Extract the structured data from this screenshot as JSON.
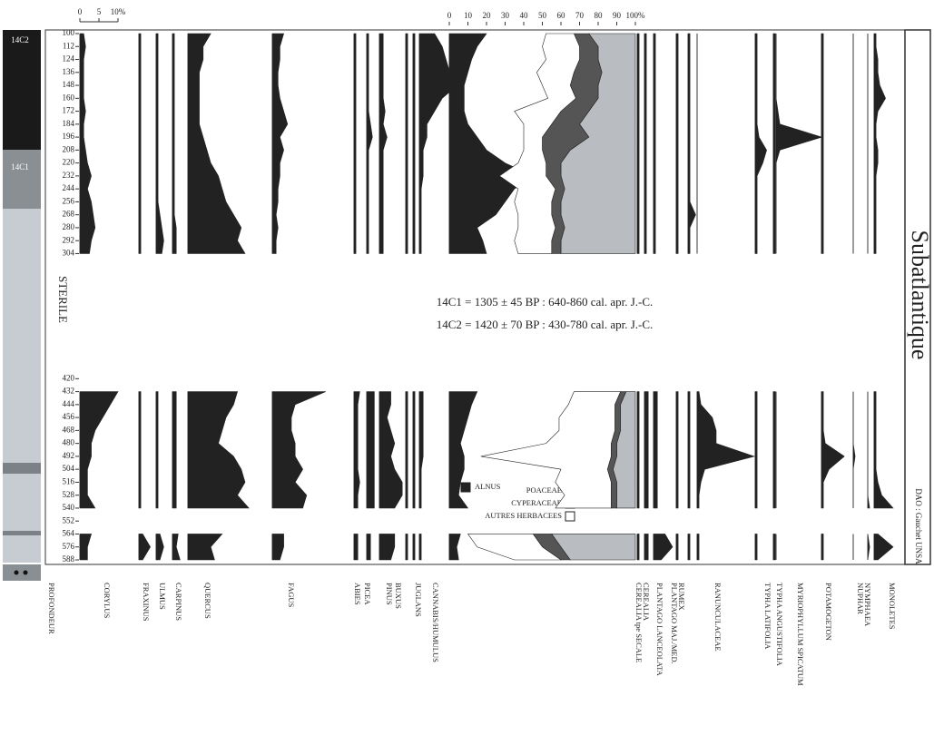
{
  "chart_data": {
    "type": "area",
    "y_label": "PROFONDEUR",
    "ylim": [
      100,
      588
    ],
    "yticks": [
      100,
      112,
      124,
      136,
      148,
      160,
      172,
      184,
      196,
      208,
      220,
      232,
      244,
      256,
      268,
      280,
      292,
      304,
      420,
      432,
      444,
      456,
      468,
      480,
      492,
      504,
      516,
      528,
      540,
      552,
      564,
      576,
      588
    ],
    "xticks": [
      0,
      5,
      {
        "value": 10,
        "label": "10%"
      }
    ],
    "x2ticks": [
      0,
      10,
      20,
      30,
      40,
      50,
      60,
      70,
      80,
      90,
      {
        "value": 100,
        "label": "100%"
      }
    ],
    "y": [
      100,
      112,
      124,
      136,
      148,
      160,
      172,
      184,
      196,
      208,
      220,
      232,
      244,
      256,
      268,
      280,
      292,
      304,
      432,
      444,
      456,
      468,
      480,
      492,
      504,
      516,
      528,
      540,
      564,
      576,
      588
    ],
    "annotations": [
      "14C1 = 1305 ± 45 BP : 640-860 cal. apr. J.-C.",
      "14C2 = 1420 ± 70 BP : 430-780 cal. apr. J.-C."
    ],
    "zone": "Subatlantique",
    "credit": "DAO : Gauchet UNSA",
    "lithology": [
      "14C2",
      "14C1",
      "STERILE"
    ],
    "series": [
      {
        "name": "CORYLUS",
        "color": "#222",
        "values": [
          1,
          1.5,
          1,
          1,
          1,
          1,
          1.5,
          1,
          1,
          1.5,
          2,
          3,
          2,
          3,
          3.5,
          4,
          3,
          2.5,
          10,
          8,
          6,
          4,
          3,
          3,
          2,
          2,
          2,
          4,
          3,
          2,
          2
        ]
      },
      {
        "name": "FRAXINUS",
        "color": "#222",
        "values": [
          0.5,
          0.5,
          0.5,
          0.5,
          0.5,
          0.5,
          0.5,
          0.5,
          0.5,
          0.5,
          0.5,
          0.5,
          0.5,
          0.5,
          0.5,
          0.5,
          0.5,
          0.5,
          0.5,
          0.5,
          0.5,
          0.5,
          0.5,
          0.5,
          0.5,
          0.5,
          0.5,
          0.5,
          1,
          3,
          1
        ]
      },
      {
        "name": "ULMUS",
        "color": "#222",
        "values": [
          0.5,
          0.5,
          0.5,
          0.5,
          0.5,
          0.5,
          0.5,
          0.5,
          0.5,
          0.5,
          0.5,
          0.5,
          0.5,
          0.5,
          1,
          1.5,
          2,
          1.5,
          0.5,
          0.5,
          0.5,
          0.5,
          0.5,
          0.5,
          0.5,
          0.5,
          0.5,
          0.5,
          1,
          2,
          1
        ]
      },
      {
        "name": "CARPINUS",
        "color": "#222",
        "values": [
          0.5,
          0.5,
          0.5,
          0.5,
          0.5,
          0.5,
          0.5,
          0.5,
          0.5,
          0.5,
          0.5,
          0.5,
          0.5,
          0.5,
          0.5,
          1,
          1,
          1,
          1,
          1,
          1,
          1,
          1,
          1,
          1,
          1,
          1,
          1,
          1.5,
          1,
          2
        ]
      },
      {
        "name": "QUERCUS",
        "color": "#222",
        "values": [
          6,
          4,
          4,
          3,
          3,
          3,
          3,
          3,
          4,
          5,
          6,
          8,
          9,
          10,
          12,
          14,
          13,
          15,
          13,
          12,
          10,
          9,
          8,
          12,
          14,
          15,
          13,
          16,
          9,
          6,
          7
        ]
      },
      {
        "name": "FAGUS",
        "color": "#222",
        "values": [
          3,
          2,
          2,
          1.5,
          1.5,
          2,
          3,
          4,
          2,
          3,
          2,
          2,
          1.5,
          1.5,
          1,
          1.5,
          1,
          1,
          14,
          6,
          5,
          5,
          6,
          6,
          8,
          6,
          9,
          8,
          3,
          3,
          2
        ]
      },
      {
        "name": "ABIES",
        "color": "#222",
        "values": [
          0.5,
          0.5,
          0.5,
          0.5,
          0.5,
          0.5,
          0.5,
          0.5,
          0.5,
          0.5,
          0.5,
          0.5,
          0.5,
          0.5,
          0.5,
          0.5,
          0.5,
          0.5,
          1.5,
          1,
          1,
          1,
          1,
          1,
          1,
          1.5,
          1,
          1,
          1,
          1,
          1
        ]
      },
      {
        "name": "PICEA",
        "color": "#222",
        "values": [
          0.5,
          0.5,
          0.5,
          0.5,
          0.5,
          0.5,
          0.5,
          1,
          1.5,
          0.5,
          0.5,
          0.5,
          0.5,
          0.5,
          0.5,
          0.5,
          0.5,
          0.5,
          2,
          2,
          2,
          2,
          2,
          2,
          2,
          2,
          2,
          2,
          1,
          1,
          1
        ]
      },
      {
        "name": "PINUS",
        "color": "#222",
        "values": [
          1,
          1,
          1,
          1,
          1,
          1,
          1.5,
          1,
          2,
          1,
          1,
          1,
          1,
          1,
          1,
          1,
          1,
          1,
          3,
          3,
          2,
          3,
          4,
          3,
          4,
          6,
          6,
          4,
          4,
          4,
          3
        ]
      },
      {
        "name": "BUXUS",
        "color": "#222",
        "values": [
          0.5,
          0.5,
          0.5,
          0.5,
          0.5,
          0.5,
          0.5,
          0.5,
          0.5,
          0.5,
          0.5,
          0.5,
          0.5,
          0.5,
          0.5,
          0.5,
          0.5,
          0.5,
          0.5,
          0.5,
          0.5,
          0.5,
          0.5,
          0.5,
          0.5,
          0.5,
          0.5,
          0.5,
          0.5,
          0.5,
          0.5
        ]
      },
      {
        "name": "JUGLANS",
        "color": "#222",
        "values": [
          0.5,
          0.5,
          0.5,
          0.5,
          0.5,
          0.5,
          0.5,
          0.5,
          0.5,
          0.5,
          0.5,
          0.5,
          0.5,
          0.5,
          0.5,
          0.5,
          0.5,
          0.5,
          0.5,
          0.5,
          0.5,
          0.5,
          0.5,
          0.5,
          0.5,
          0.5,
          0.5,
          0.5,
          0.5,
          0.5,
          0.5
        ]
      },
      {
        "name": "CANNABIS/HUMULUS",
        "color": "#222",
        "values": [
          4,
          6,
          7,
          8,
          10,
          6,
          4,
          2,
          2,
          1,
          1,
          1,
          0.5,
          0.5,
          0.5,
          0.5,
          0.5,
          0.5,
          1,
          1,
          1,
          1,
          1,
          1,
          0.5,
          0.5,
          0.5,
          0.5,
          0.5,
          0.5,
          0.5
        ]
      },
      {
        "name": "ALNUS",
        "color": "#222",
        "axis": "x2",
        "values": [
          20,
          15,
          12,
          10,
          8,
          8,
          8,
          10,
          15,
          20,
          30,
          45,
          35,
          30,
          25,
          15,
          18,
          20,
          15,
          12,
          10,
          8,
          6,
          8,
          8,
          6,
          5,
          10,
          6,
          4,
          5
        ]
      },
      {
        "name": "POACEAE",
        "color": "#b9bdc1",
        "axis": "x2",
        "stack": true,
        "values": [
          25,
          20,
          20,
          18,
          20,
          20,
          25,
          30,
          25,
          35,
          40,
          40,
          38,
          40,
          40,
          38,
          40,
          40,
          5,
          8,
          8,
          8,
          10,
          10,
          12,
          10,
          10,
          10,
          45,
          40,
          35
        ]
      },
      {
        "name": "CYPERACEAE",
        "color": "#555",
        "axis": "x2",
        "stack": true,
        "values": [
          8,
          10,
          10,
          15,
          15,
          12,
          15,
          15,
          25,
          15,
          8,
          8,
          5,
          5,
          5,
          5,
          5,
          5,
          3,
          3,
          3,
          3,
          3,
          3,
          3,
          3,
          3,
          3,
          10,
          10,
          5
        ]
      },
      {
        "name": "AUTRES HERBACEES",
        "color": "#fff",
        "axis": "x2",
        "stack": true,
        "values": [
          15,
          20,
          18,
          20,
          15,
          15,
          25,
          15,
          10,
          10,
          15,
          25,
          20,
          20,
          18,
          20,
          20,
          18,
          25,
          25,
          30,
          30,
          35,
          70,
          25,
          30,
          25,
          30,
          35,
          35,
          25
        ]
      },
      {
        "name": "CEREALIA",
        "color": "#222",
        "values": [
          0.5,
          0.5,
          0.5,
          0.5,
          0.5,
          0.5,
          0.5,
          0.5,
          0.5,
          0.5,
          0.5,
          0.5,
          0.5,
          0.5,
          0.5,
          0.5,
          0.5,
          0.5,
          0.5,
          0.5,
          0.5,
          0.5,
          0.5,
          0.5,
          0.5,
          0.5,
          0.5,
          0.5,
          0.5,
          0.5,
          0.5
        ]
      },
      {
        "name": "CEREALIA tpe SECALE",
        "color": "#222",
        "values": [
          0.5,
          0.5,
          0.5,
          0.5,
          0.5,
          0.5,
          0.5,
          0.5,
          0.5,
          0.5,
          0.5,
          0.5,
          0.5,
          0.5,
          0.5,
          0.5,
          0.5,
          0.5,
          1,
          1,
          1,
          1,
          1,
          1,
          1,
          1,
          1,
          1,
          1,
          1,
          1
        ]
      },
      {
        "name": "PLANTAGO LANCEOLATA",
        "color": "#222",
        "values": [
          0.5,
          0.5,
          0.5,
          0.5,
          0.5,
          0.5,
          0.5,
          0.5,
          0.5,
          0.5,
          0.5,
          0.5,
          0.5,
          0.5,
          0.5,
          0.5,
          0.5,
          0.5,
          1,
          1,
          1,
          1,
          1,
          1,
          1,
          1,
          1,
          1,
          3,
          5,
          2
        ]
      },
      {
        "name": "PLANTAGO MAJ./MED.",
        "color": "#222",
        "values": [
          0.5,
          0.5,
          0.5,
          0.5,
          0.5,
          0.5,
          0.5,
          0.5,
          0.5,
          0.5,
          0.5,
          0.5,
          0.5,
          0.5,
          0.5,
          0.5,
          0.5,
          0.5,
          0.5,
          0.5,
          0.5,
          0.5,
          0.5,
          0.5,
          0.5,
          0.5,
          0.5,
          0.5,
          0.5,
          0.5,
          0.5
        ]
      },
      {
        "name": "RUMEX",
        "color": "#222",
        "values": [
          0.5,
          0.5,
          0.5,
          0.5,
          0.5,
          0.5,
          0.5,
          0.5,
          0.5,
          0.5,
          0.5,
          0.5,
          0.5,
          0.5,
          2,
          0.5,
          0.5,
          0.5,
          0.5,
          0.5,
          0.5,
          0.5,
          0.5,
          0.5,
          0.5,
          0.5,
          0.5,
          0.5,
          0.5,
          0.5,
          0.5
        ]
      },
      {
        "name": "RANUNCULACEAE",
        "color": "#222",
        "values": [
          0,
          0,
          0,
          0,
          0,
          0,
          0,
          0,
          0,
          0,
          0,
          0,
          0,
          0,
          0,
          0,
          0,
          0,
          0.5,
          1,
          4,
          5,
          5,
          15,
          2,
          1,
          0.5,
          0.5,
          0.5,
          0.5,
          0.5
        ]
      },
      {
        "name": "TYPHA LATIFOLIA",
        "color": "#222",
        "values": [
          0.5,
          0.5,
          0.5,
          0.5,
          0.5,
          0.5,
          0.5,
          0.5,
          1,
          3,
          2,
          0.5,
          0.5,
          0.5,
          0.5,
          0.5,
          0.5,
          0.5,
          0.5,
          0.5,
          0.5,
          0.5,
          0.5,
          0.5,
          0.5,
          0.5,
          0.5,
          0.5,
          0.5,
          0.5,
          0.5
        ]
      },
      {
        "name": "TYPHA ANGUSTIFOLIA",
        "color": "#222",
        "values": [
          0.5,
          0.5,
          0.5,
          0.5,
          0.5,
          0.5,
          0.5,
          0.5,
          0.5,
          0.5,
          0.5,
          0.5,
          0.5,
          0.5,
          0.5,
          0.5,
          0.5,
          0.5,
          0.5,
          0.5,
          0.5,
          0.5,
          0.5,
          0.5,
          0.5,
          0.5,
          0.5,
          0.5,
          0.5,
          0.5,
          0.5
        ]
      },
      {
        "name": "MYRIOPHYLLUM SPICATUM",
        "color": "#222",
        "values": [
          0,
          0,
          0,
          0,
          0,
          0,
          0.5,
          1,
          12,
          1,
          0,
          0,
          0,
          0,
          0,
          0,
          0,
          0,
          0,
          0,
          0,
          0,
          0,
          0,
          0,
          0,
          0,
          0,
          0,
          0,
          0
        ]
      },
      {
        "name": "POTAMOGETON",
        "color": "#222",
        "values": [
          0.5,
          0.5,
          0.5,
          0.5,
          0.5,
          0.5,
          0.5,
          0.5,
          0.5,
          0.5,
          0.5,
          0.5,
          0.5,
          0.5,
          0.5,
          0.5,
          0.5,
          0.5,
          0.5,
          0.5,
          0.5,
          0.5,
          1,
          6,
          2,
          0.5,
          0.5,
          0.5,
          0.5,
          0.5,
          0.5
        ]
      },
      {
        "name": "NUPHAR",
        "color": "#222",
        "values": [
          0,
          0,
          0,
          0,
          0,
          0,
          0,
          0,
          0,
          0,
          0,
          0,
          0,
          0,
          0,
          0,
          0,
          0,
          0,
          0,
          0,
          0,
          0,
          0.5,
          0,
          0,
          0,
          0,
          0,
          0,
          0
        ]
      },
      {
        "name": "NYMPHAEA",
        "color": "#222",
        "values": [
          0,
          0,
          0,
          0,
          0,
          0,
          0,
          0,
          0,
          0,
          0,
          0,
          0,
          0,
          0,
          0,
          0,
          0,
          0,
          0,
          0,
          0,
          0,
          0,
          0,
          0,
          0,
          0.5,
          0,
          0.5,
          0
        ]
      },
      {
        "name": "MONOLETES",
        "color": "#222",
        "values": [
          0.5,
          0.5,
          1,
          1,
          1.5,
          3,
          1,
          0.5,
          0.5,
          1,
          1,
          0.5,
          0.5,
          0.5,
          0.5,
          0.5,
          0.5,
          0.5,
          0.5,
          0.5,
          0.5,
          0.5,
          0.5,
          0.5,
          0.5,
          1,
          2,
          5,
          1,
          5,
          1
        ]
      }
    ]
  }
}
